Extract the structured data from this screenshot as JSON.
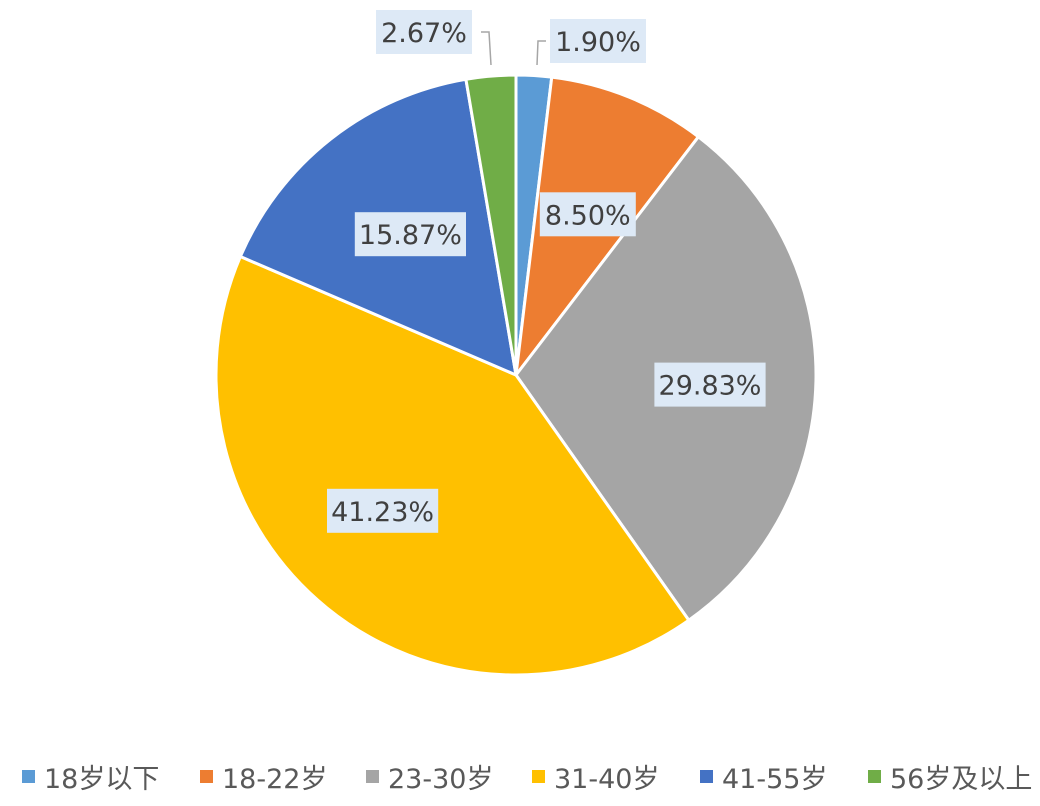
{
  "chart_data": {
    "type": "pie",
    "categories": [
      "18岁以下",
      "18-22岁",
      "23-30岁",
      "31-40岁",
      "41-55岁",
      "56岁及以上"
    ],
    "values": [
      1.9,
      8.5,
      29.83,
      41.23,
      15.87,
      2.67
    ],
    "data_labels": [
      "1.90%",
      "8.50%",
      "29.83%",
      "41.23%",
      "15.87%",
      "2.67%"
    ],
    "colors": [
      "#5b9bd5",
      "#ed7d31",
      "#a5a5a5",
      "#ffc000",
      "#4472c4",
      "#70ad47"
    ],
    "legend_position": "bottom",
    "start_angle": "top, clockwise"
  }
}
